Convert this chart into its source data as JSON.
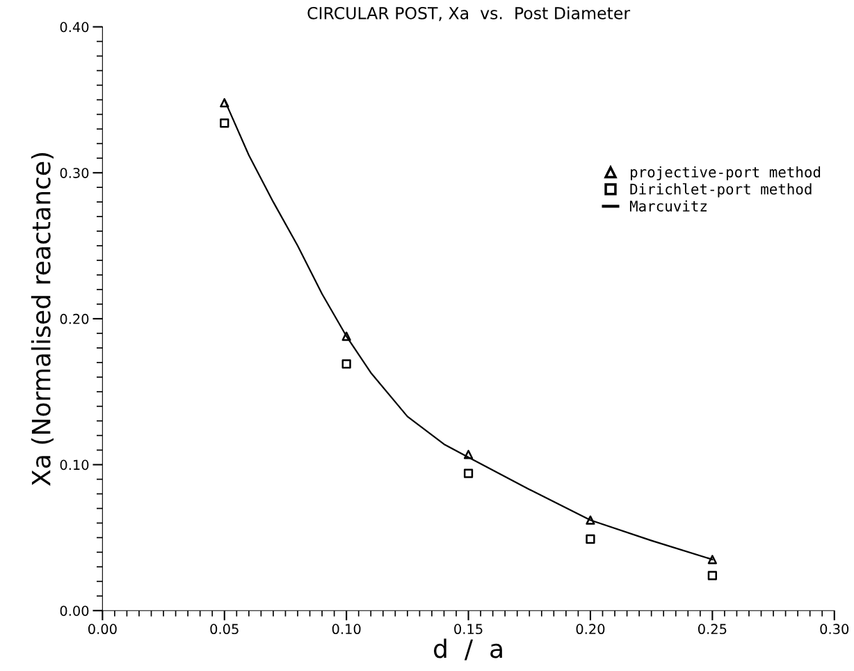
{
  "chart_data": {
    "type": "scatter",
    "title": "CIRCULAR POST, Xa  vs.  Post Diameter",
    "xlabel": "d  /  a",
    "ylabel": "Xa (Normalised reactance)",
    "xlim": [
      0,
      0.3
    ],
    "ylim": [
      0,
      0.4
    ],
    "xticks": [
      {
        "value": 0,
        "label": "0.00"
      },
      {
        "value": 0.05,
        "label": "0.05"
      },
      {
        "value": 0.1,
        "label": "0.10"
      },
      {
        "value": 0.15,
        "label": "0.15"
      },
      {
        "value": 0.2,
        "label": "0.20"
      },
      {
        "value": 0.25,
        "label": "0.25"
      },
      {
        "value": 0.3,
        "label": "0.30"
      }
    ],
    "yticks": [
      {
        "value": 0,
        "label": "0.00"
      },
      {
        "value": 0.1,
        "label": "0.10"
      },
      {
        "value": 0.2,
        "label": "0.20"
      },
      {
        "value": 0.3,
        "label": "0.30"
      },
      {
        "value": 0.4,
        "label": "0.40"
      }
    ],
    "grid": false,
    "legend": "right",
    "series": [
      {
        "name": "projective-port method",
        "marker": "triangle",
        "color": "#000000",
        "x": [
          0.05,
          0.1,
          0.15,
          0.2,
          0.25
        ],
        "values": [
          0.348,
          0.188,
          0.107,
          0.062,
          0.035
        ]
      },
      {
        "name": "Dirichlet-port method",
        "marker": "square",
        "color": "#000000",
        "x": [
          0.05,
          0.1,
          0.15,
          0.2,
          0.25
        ],
        "values": [
          0.334,
          0.169,
          0.094,
          0.049,
          0.024
        ]
      },
      {
        "name": "Marcuvitz",
        "type": "line",
        "marker": "none",
        "line_style": "solid",
        "color": "#000000",
        "x": [
          0.05,
          0.06,
          0.07,
          0.08,
          0.09,
          0.1,
          0.11,
          0.125,
          0.14,
          0.15,
          0.175,
          0.2,
          0.225,
          0.25
        ],
        "values": [
          0.35,
          0.312,
          0.28,
          0.25,
          0.217,
          0.188,
          0.163,
          0.133,
          0.114,
          0.105,
          0.083,
          0.062,
          0.048,
          0.035
        ]
      }
    ]
  }
}
